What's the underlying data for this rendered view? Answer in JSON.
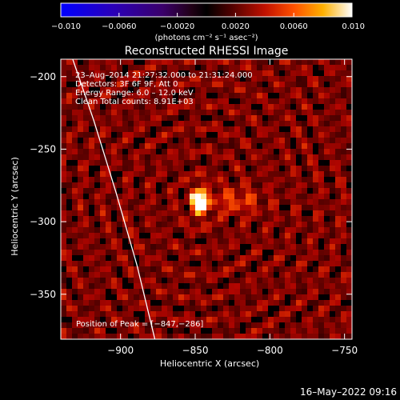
{
  "chart_data": {
    "type": "heatmap",
    "title": "Reconstructed RHESSI Image",
    "xlabel": "Heliocentric X (arcsec)",
    "ylabel": "Heliocentric Y (arcsec)",
    "xlim": [
      -940,
      -745
    ],
    "ylim": [
      -381,
      -188
    ],
    "x_ticks": [
      -900,
      -850,
      -800,
      -750
    ],
    "y_ticks": [
      -200,
      -250,
      -300,
      -350
    ],
    "x_tick_labels": [
      "−900",
      "−850",
      "−800",
      "−750"
    ],
    "y_tick_labels": [
      "−200",
      "−250",
      "−300",
      "−350"
    ],
    "colorbar": {
      "range": [
        -0.01,
        0.01
      ],
      "ticks": [
        -0.01,
        -0.006,
        -0.002,
        0.002,
        0.006,
        0.01
      ],
      "tick_labels": [
        "−0.010",
        "−0.0060",
        "−0.0020",
        "0.0020",
        "0.0060",
        "0.010"
      ],
      "label": "(photons cm⁻² s⁻¹ asec⁻²)"
    },
    "source_peak": {
      "x": -847,
      "y": -286
    },
    "info_lines": [
      "23–Aug–2014 21:27:32.000 to 21:31:24.000",
      "Detectors: 3F 6F 9F, Att 0",
      "Energy Range: 6.0 – 12.0 keV",
      "Clean    Total counts: 8.91E+03"
    ],
    "peak_label": "Position of Peak = [−847,−286]",
    "limb_curve": [
      {
        "x": -932,
        "y": -188
      },
      {
        "x": -918,
        "y": -230
      },
      {
        "x": -903,
        "y": -280
      },
      {
        "x": -889,
        "y": -330
      },
      {
        "x": -877,
        "y": -381
      }
    ]
  },
  "footer": {
    "timestamp": "16–May–2022 09:16"
  }
}
